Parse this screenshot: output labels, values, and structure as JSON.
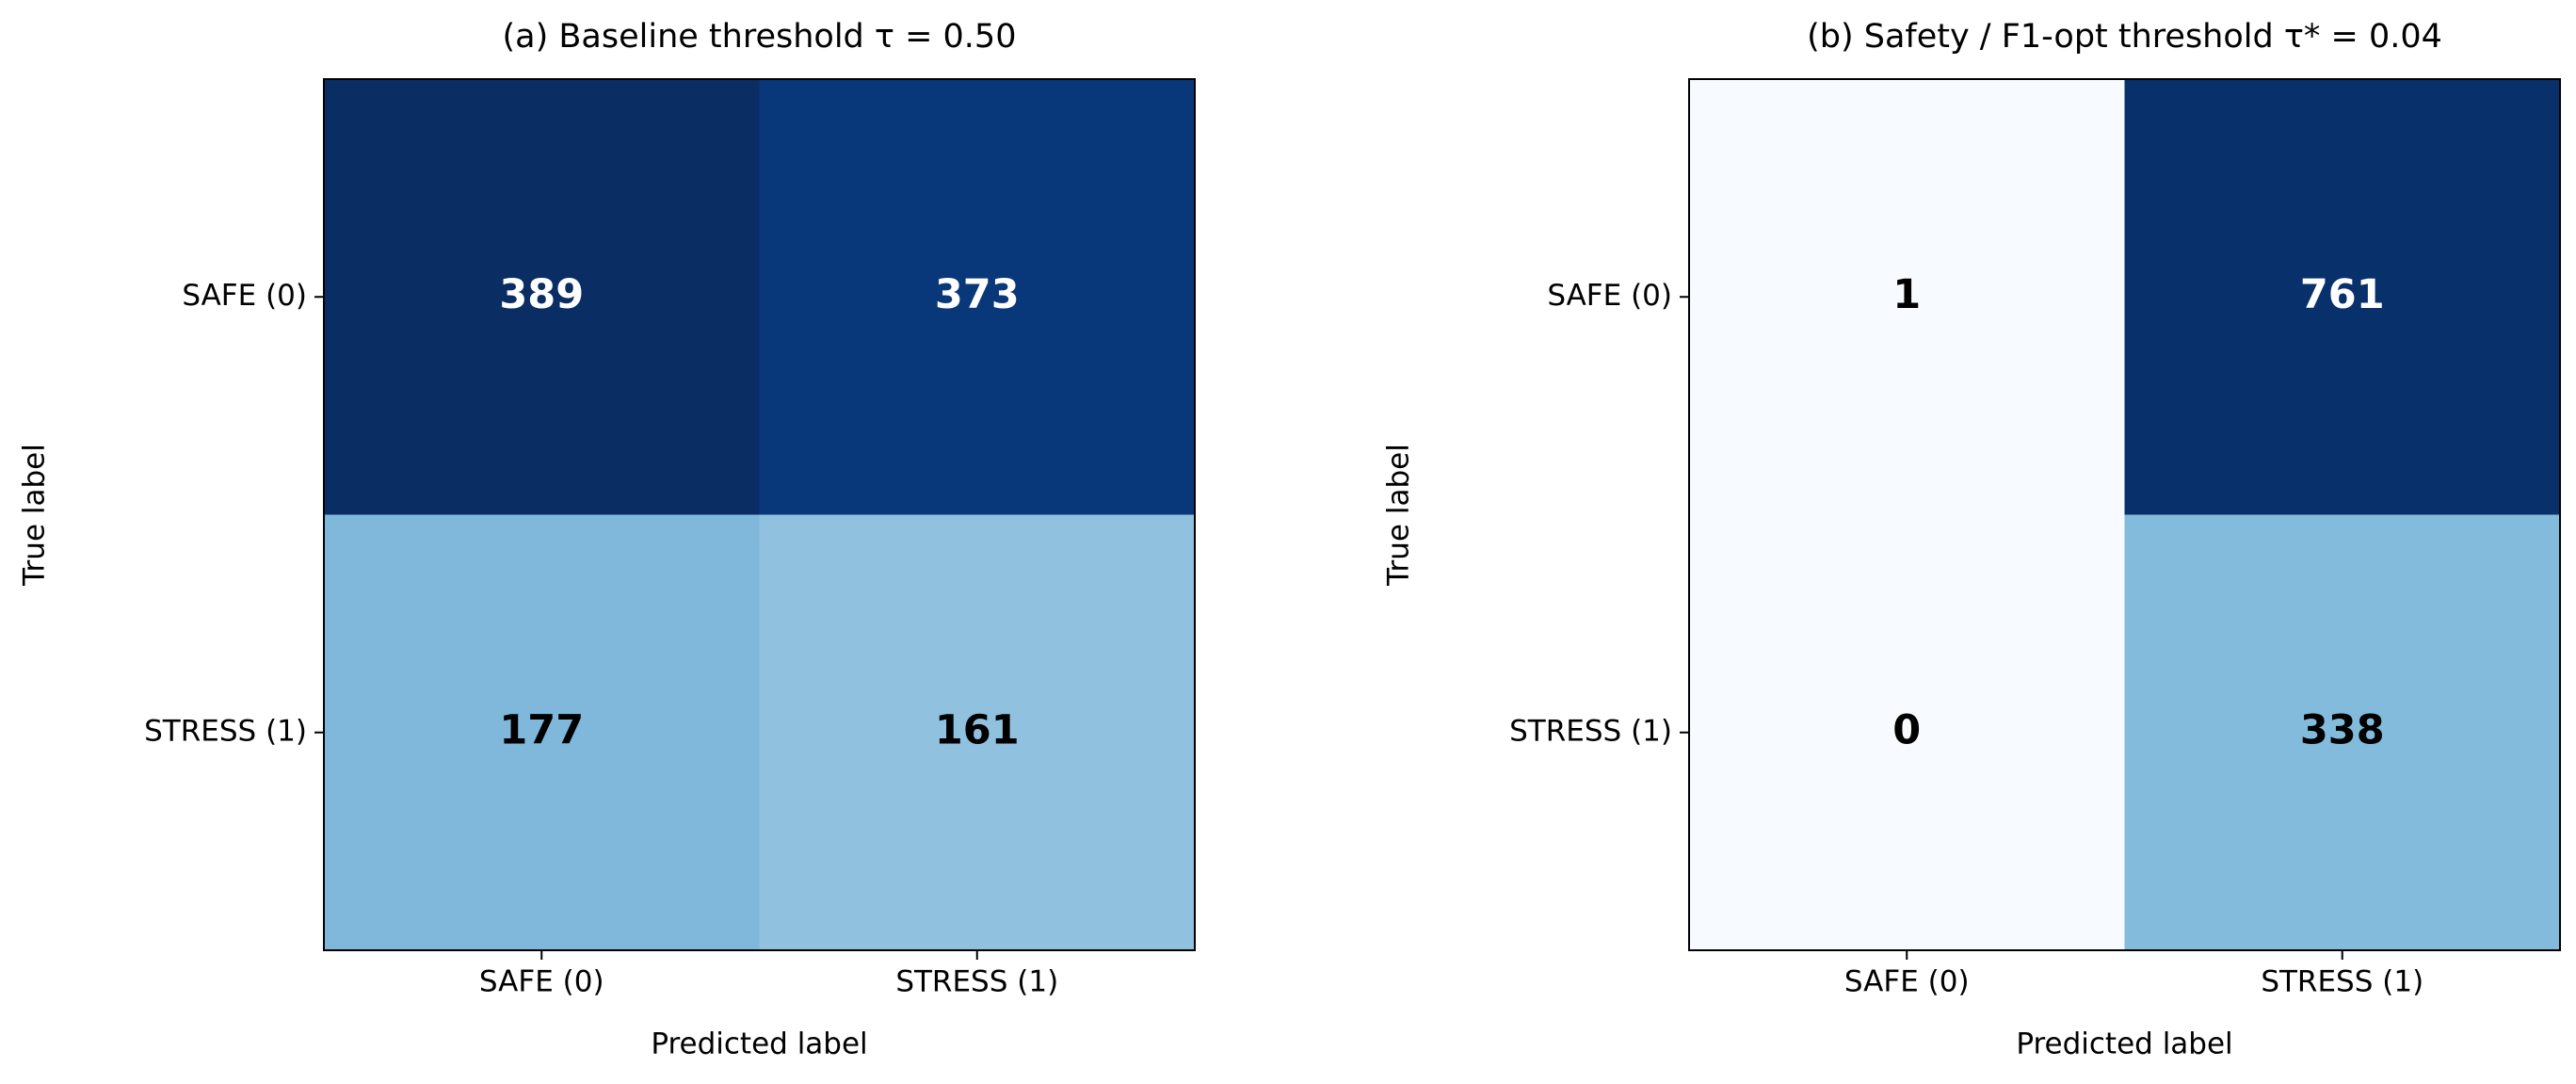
{
  "chart_data": [
    {
      "type": "heatmap",
      "title": "(a) Baseline threshold τ = 0.50",
      "x_label": "Predicted label",
      "y_label": "True label",
      "x_categories": [
        "SAFE (0)",
        "STRESS (1)"
      ],
      "y_categories": [
        "SAFE (0)",
        "STRESS (1)"
      ],
      "values": [
        [
          389,
          373
        ],
        [
          177,
          161
        ]
      ],
      "colors": [
        [
          "#0a2d64",
          "#08377a"
        ],
        [
          "#7fb8da",
          "#90c1df"
        ]
      ]
    },
    {
      "type": "heatmap",
      "title": "(b) Safety / F1-opt threshold τ* = 0.04",
      "x_label": "Predicted label",
      "y_label": "True label",
      "x_categories": [
        "SAFE (0)",
        "STRESS (1)"
      ],
      "y_categories": [
        "SAFE (0)",
        "STRESS (1)"
      ],
      "values": [
        [
          1,
          761
        ],
        [
          0,
          338
        ]
      ],
      "colors": [
        [
          "#f7fbff",
          "#08306b"
        ],
        [
          "#f7fbff",
          "#82bbdb"
        ]
      ]
    }
  ]
}
